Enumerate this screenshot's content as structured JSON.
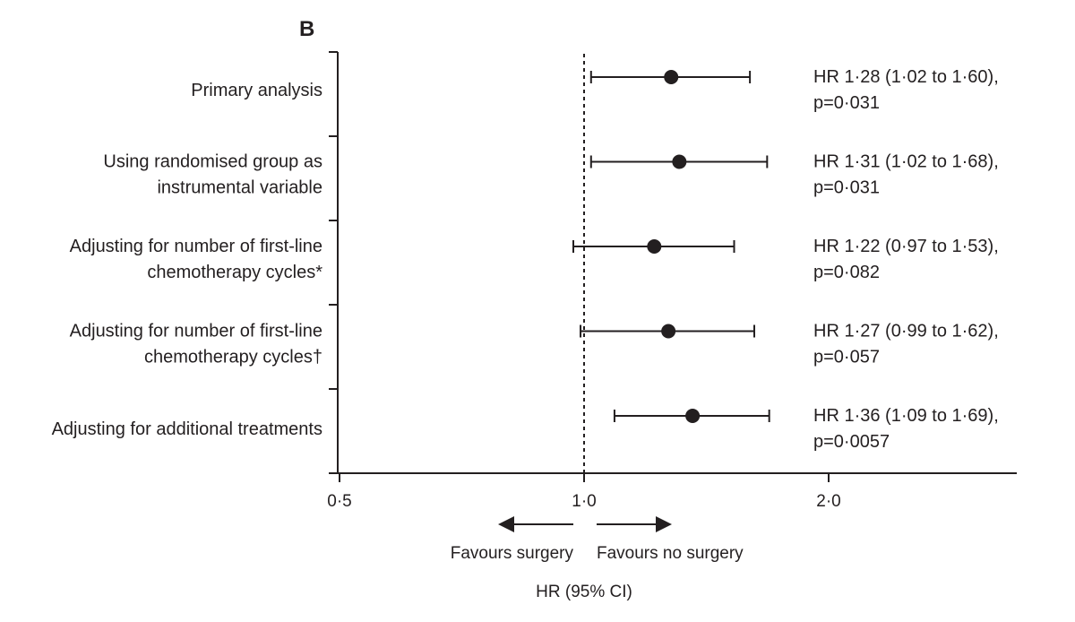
{
  "chart_data": {
    "type": "forest",
    "panel_label": "B",
    "rows": [
      {
        "label_lines": [
          "Primary analysis"
        ],
        "hr": 1.28,
        "ci_low": 1.02,
        "ci_high": 1.6,
        "result_lines": [
          "HR 1·28 (1·02 to 1·60),",
          "p=0·031"
        ]
      },
      {
        "label_lines": [
          "Using randomised group as",
          "instrumental variable"
        ],
        "hr": 1.31,
        "ci_low": 1.02,
        "ci_high": 1.68,
        "result_lines": [
          "HR 1·31 (1·02 to 1·68),",
          "p=0·031"
        ]
      },
      {
        "label_lines": [
          "Adjusting for number of first-line",
          "chemotherapy cycles*"
        ],
        "hr": 1.22,
        "ci_low": 0.97,
        "ci_high": 1.53,
        "result_lines": [
          "HR 1·22 (0·97 to 1·53),",
          "p=0·082"
        ]
      },
      {
        "label_lines": [
          "Adjusting for number of first-line",
          "chemotherapy cycles†"
        ],
        "hr": 1.27,
        "ci_low": 0.99,
        "ci_high": 1.62,
        "result_lines": [
          "HR 1·27 (0·99 to 1·62),",
          "p=0·057"
        ]
      },
      {
        "label_lines": [
          "Adjusting for additional treatments"
        ],
        "hr": 1.36,
        "ci_low": 1.09,
        "ci_high": 1.69,
        "result_lines": [
          "HR 1·36 (1·09 to 1·69),",
          "p=0·0057"
        ]
      }
    ],
    "x_axis": {
      "scale": "log",
      "ticks": [
        {
          "value": 0.5,
          "label": "0·5"
        },
        {
          "value": 1.0,
          "label": "1·0"
        },
        {
          "value": 2.0,
          "label": "2·0"
        }
      ],
      "xlim": [
        0.5,
        2.8
      ],
      "title": "HR (95% CI)"
    },
    "reference_line": 1.0,
    "direction_labels": {
      "left": "Favours surgery",
      "right": "Favours no surgery"
    }
  }
}
